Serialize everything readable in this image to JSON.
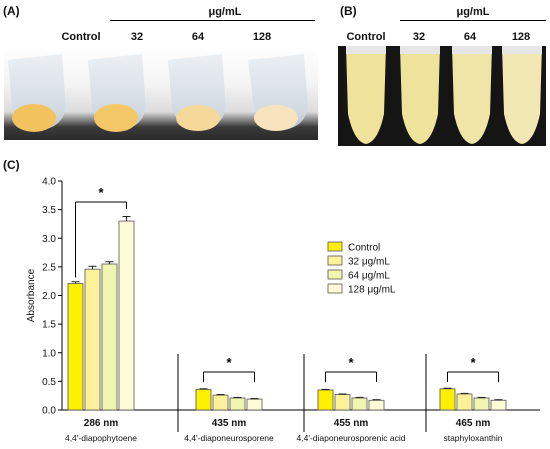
{
  "panels": {
    "a": {
      "label": "(A)",
      "unit": "μg/mL",
      "columns": [
        "Control",
        "32",
        "64",
        "128"
      ]
    },
    "b": {
      "label": "(B)",
      "unit": "μg/mL",
      "columns": [
        "Control",
        "32",
        "64",
        "128"
      ]
    },
    "c": {
      "label": "(C)"
    }
  },
  "colors": {
    "control": "#ffef00",
    "c32": "#fdf29a",
    "c64": "#f0f5b0",
    "c128": "#fdfcd6",
    "bar_stroke": "#555555",
    "pellet": "#f2c25e",
    "broth": "#efe29a"
  },
  "chart_data": {
    "type": "bar",
    "ylabel": "Absorbance",
    "ylim": [
      0,
      4.0
    ],
    "yticks": [
      "0.0",
      "0.5",
      "1.0",
      "1.5",
      "2.0",
      "2.5",
      "3.0",
      "3.5",
      "4.0"
    ],
    "legend_position": "right",
    "grid": false,
    "series": [
      {
        "name": "Control",
        "color": "#ffef00"
      },
      {
        "name": "32 μg/mL",
        "color": "#fdf29a"
      },
      {
        "name": "64 μg/mL",
        "color": "#f0f5b0"
      },
      {
        "name": "128 μg/mL",
        "color": "#fdfcd6"
      }
    ],
    "groups": [
      {
        "wavelength": "286 nm",
        "compound": "4,4'-diapophytoene",
        "values": [
          2.21,
          2.46,
          2.55,
          3.3
        ],
        "errors": [
          0.03,
          0.05,
          0.04,
          0.08
        ],
        "significance": "*"
      },
      {
        "wavelength": "435 nm",
        "compound": "4,4'-diaponeurosporene",
        "values": [
          0.36,
          0.26,
          0.21,
          0.19
        ],
        "errors": [
          0.01,
          0.01,
          0.01,
          0.01
        ],
        "significance": "*"
      },
      {
        "wavelength": "455 nm",
        "compound": "4,4'-diaponeurosporenic acid",
        "values": [
          0.35,
          0.27,
          0.21,
          0.17
        ],
        "errors": [
          0.01,
          0.01,
          0.01,
          0.01
        ],
        "significance": "*"
      },
      {
        "wavelength": "465 nm",
        "compound": "staphyloxanthin",
        "values": [
          0.37,
          0.28,
          0.21,
          0.17
        ],
        "errors": [
          0.01,
          0.01,
          0.01,
          0.01
        ],
        "significance": "*"
      }
    ]
  }
}
